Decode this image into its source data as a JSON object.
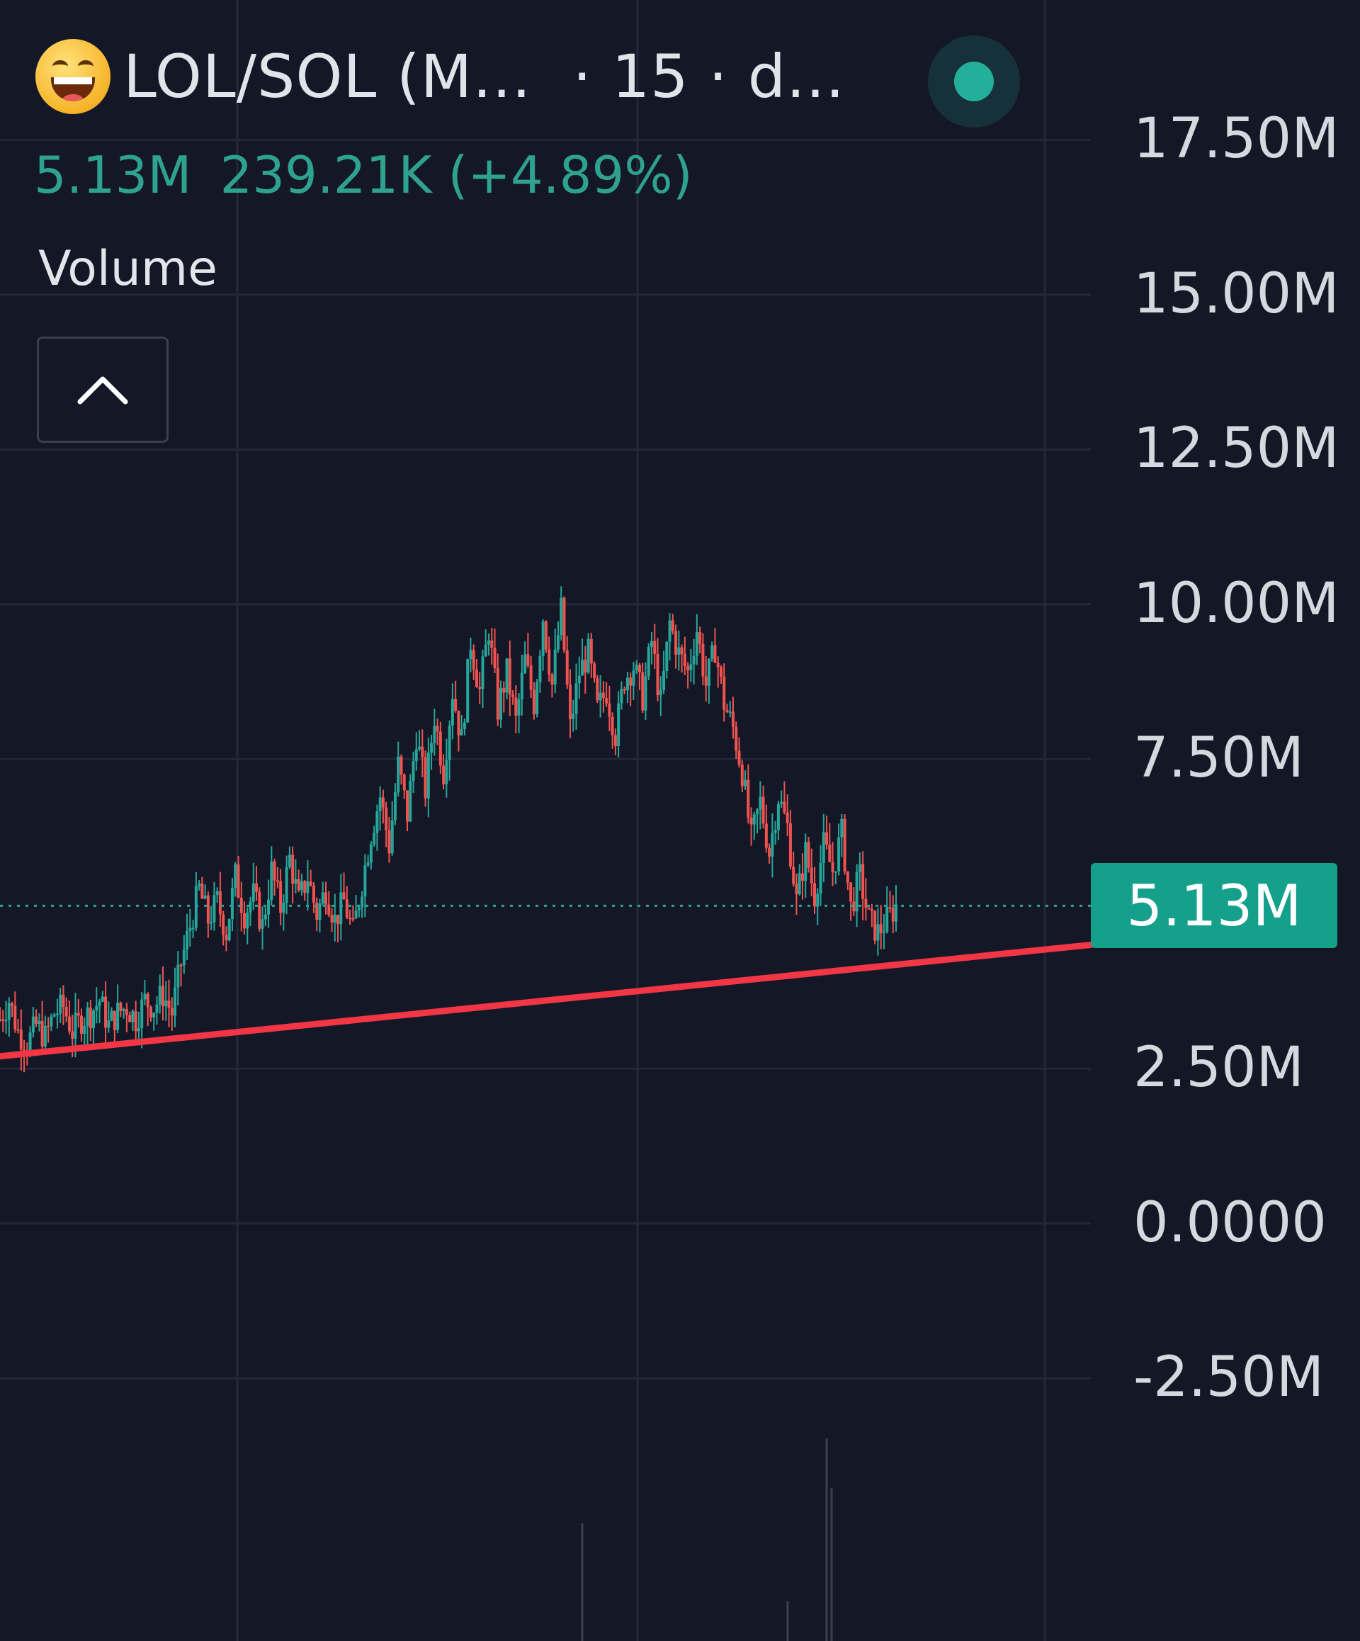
{
  "header": {
    "title": "LOL/SOL (M...",
    "interval": "· 15 · d...",
    "icon": "grinning-face-icon",
    "status_icon": "live-indicator-icon",
    "status_color": "#22b09b"
  },
  "stats": {
    "last": "5.13M",
    "change": "239.21K (+4.89%)",
    "color": "#2fa18f"
  },
  "indicator": {
    "label": "Volume",
    "collapse_icon": "chevron-up-icon"
  },
  "chart_data": {
    "type": "candlestick",
    "title": "LOL/SOL (M...",
    "up_color": "#26a69a",
    "down_color": "#ef5350",
    "trendline_color": "#f23645",
    "grid": true,
    "y_ticks": [
      "17.50M",
      "15.00M",
      "12.50M",
      "10.00M",
      "7.50M",
      "2.50M",
      "0.0000",
      "-2.50M"
    ],
    "y_tick_values": [
      17.5,
      15.0,
      12.5,
      10.0,
      7.5,
      2.5,
      0.0,
      -2.5
    ],
    "y_unit": "M",
    "last_price": {
      "value": 5.13,
      "label": "5.13M"
    },
    "ylim": [
      -4.5,
      18.5
    ],
    "trendline": {
      "start": 2.7,
      "end": 4.5
    },
    "price_path": [
      3.3,
      3.6,
      3.1,
      2.9,
      3.2,
      3.0,
      3.4,
      3.5,
      3.1,
      3.3,
      3.4,
      3.6,
      3.2,
      3.4,
      3.5,
      3.3,
      3.6,
      3.5,
      3.7,
      3.4,
      4.2,
      4.8,
      5.4,
      4.9,
      5.2,
      4.7,
      5.6,
      5.0,
      5.3,
      4.8,
      5.7,
      5.1,
      5.9,
      5.2,
      5.6,
      5.0,
      5.4,
      4.9,
      5.2,
      4.7,
      5.5,
      6.3,
      6.9,
      6.1,
      7.4,
      6.6,
      7.9,
      7.0,
      8.2,
      7.3,
      8.6,
      7.8,
      9.4,
      8.6,
      9.6,
      8.3,
      8.9,
      8.1,
      9.1,
      8.4,
      9.8,
      8.7,
      9.9,
      8.0,
      8.9,
      9.2,
      8.3,
      8.6,
      7.9,
      8.8,
      9.0,
      8.5,
      9.4,
      8.4,
      9.7,
      9.2,
      8.9,
      9.6,
      8.7,
      9.3,
      8.4,
      8.0,
      7.3,
      6.2,
      6.8,
      6.0,
      6.9,
      6.4,
      5.2,
      6.0,
      5.3,
      6.1,
      5.7,
      6.3,
      5.1,
      5.6,
      4.9,
      4.7,
      4.9,
      5.13
    ]
  }
}
